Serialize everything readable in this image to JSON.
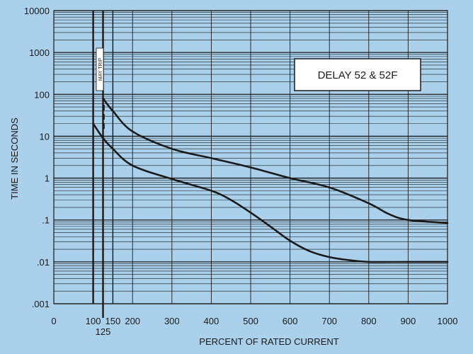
{
  "chart_data": {
    "type": "line",
    "title": "",
    "xlabel": "PERCENT OF RATED CURRENT",
    "ylabel": "TIME IN SECONDS",
    "x_ticks": [
      {
        "value": 0,
        "label": "0"
      },
      {
        "value": 100,
        "label": "100"
      },
      {
        "value": 150,
        "label": "150"
      },
      {
        "value": 200,
        "label": "200"
      },
      {
        "value": 300,
        "label": "300"
      },
      {
        "value": 400,
        "label": "400"
      },
      {
        "value": 500,
        "label": "500"
      },
      {
        "value": 600,
        "label": "600"
      },
      {
        "value": 700,
        "label": "700"
      },
      {
        "value": 800,
        "label": "800"
      },
      {
        "value": 900,
        "label": "900"
      },
      {
        "value": 1000,
        "label": "1000"
      }
    ],
    "x_extra_tick": {
      "value": 125,
      "label": "125"
    },
    "y_ticks": [
      {
        "value": 10000,
        "label": "10000"
      },
      {
        "value": 1000,
        "label": "1000"
      },
      {
        "value": 100,
        "label": "100"
      },
      {
        "value": 10,
        "label": "10"
      },
      {
        "value": 1,
        "label": "1"
      },
      {
        "value": 0.1,
        "label": ".1"
      },
      {
        "value": 0.01,
        "label": ".01"
      },
      {
        "value": 0.001,
        "label": ".001"
      }
    ],
    "xlim": [
      0,
      1000
    ],
    "ylim": [
      0.001,
      10000
    ],
    "y_scale": "log",
    "grid": true,
    "annotations": {
      "box_label": "DELAY 52 & 52F",
      "trip_band_label": "MAY TRIP"
    },
    "reference_lines_x": [
      100,
      125,
      150
    ],
    "series": [
      {
        "role": "lower-bound",
        "points": [
          [
            100,
            20
          ],
          [
            125,
            9
          ],
          [
            150,
            5
          ],
          [
            200,
            2
          ],
          [
            300,
            0.95
          ],
          [
            400,
            0.5
          ],
          [
            450,
            0.3
          ],
          [
            500,
            0.15
          ],
          [
            550,
            0.07
          ],
          [
            600,
            0.032
          ],
          [
            650,
            0.018
          ],
          [
            700,
            0.013
          ],
          [
            750,
            0.011
          ],
          [
            800,
            0.01
          ],
          [
            900,
            0.01
          ],
          [
            1000,
            0.01
          ]
        ]
      },
      {
        "role": "upper-bound",
        "points": [
          [
            125,
            80
          ],
          [
            150,
            40
          ],
          [
            200,
            13
          ],
          [
            300,
            5
          ],
          [
            400,
            3
          ],
          [
            500,
            1.8
          ],
          [
            600,
            1.0
          ],
          [
            700,
            0.6
          ],
          [
            800,
            0.25
          ],
          [
            850,
            0.14
          ],
          [
            900,
            0.1
          ],
          [
            1000,
            0.085
          ]
        ]
      }
    ],
    "upper_dashed_segment": [
      [
        125,
        15
      ],
      [
        125,
        80
      ]
    ]
  },
  "colors": {
    "background": "#aad0ec",
    "line": "#1a1a1a",
    "grid": "#1a1a1a",
    "box_fill": "#ffffff"
  }
}
